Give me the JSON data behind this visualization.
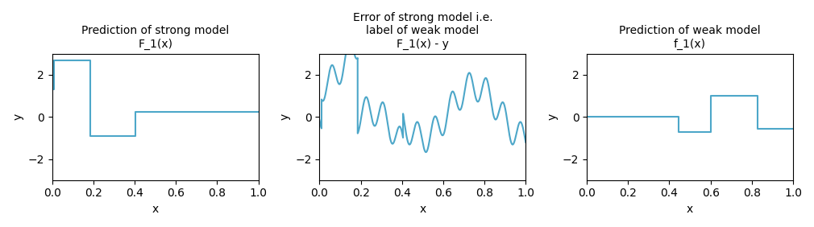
{
  "title1": "Prediction of strong model\nF_1(x)",
  "title2": "Error of strong model i.e.\nlabel of weak model\nF_1(x) - y",
  "title3": "Prediction of weak model\nf_1(x)",
  "xlabel": "x",
  "ylabel": "y",
  "ylim": [
    -3,
    3
  ],
  "xlim": [
    0.0,
    1.0
  ],
  "line_color": "#4da7c9",
  "line_width": 1.5,
  "figsize": [
    10.1,
    2.82
  ],
  "dpi": 100
}
